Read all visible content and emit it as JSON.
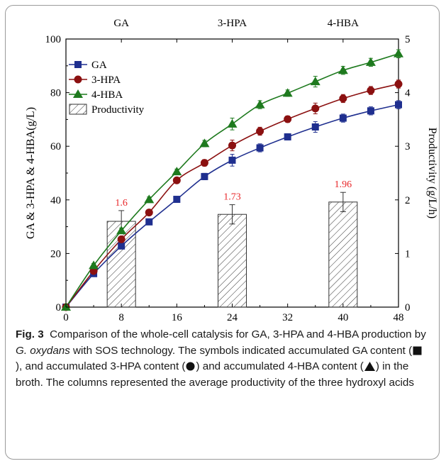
{
  "colors": {
    "GA": "#1f2f8f",
    "3-HPA": "#8b1010",
    "4-HBA": "#1e7a1e",
    "bar_label": "#e8272a",
    "axis": "#000000"
  },
  "chart_data": {
    "type": "line",
    "x": [
      0,
      4,
      8,
      12,
      16,
      20,
      24,
      28,
      32,
      36,
      40,
      44,
      48
    ],
    "xlabel": "Time (h)",
    "ylabel": "GA & 3-HPA & 4-HBA(g/L)",
    "y2label": "Productivity (g/L/h)",
    "xlim": [
      0,
      48
    ],
    "ylim": [
      0,
      100
    ],
    "y2lim": [
      0,
      5
    ],
    "xticks": [
      0,
      8,
      16,
      24,
      32,
      40,
      48
    ],
    "yticks": [
      0,
      20,
      40,
      60,
      80,
      100
    ],
    "y2ticks": [
      0,
      1,
      2,
      3,
      4,
      5
    ],
    "top_labels": [
      "GA",
      "3-HPA",
      "4-HBA"
    ],
    "legend_position": "top-left",
    "grid": false,
    "series": [
      {
        "name": "GA",
        "marker": "square",
        "values": [
          0,
          12.5,
          22.8,
          31.8,
          40.2,
          48.7,
          54.8,
          59.4,
          63.5,
          67.2,
          70.5,
          73.2,
          75.5
        ],
        "errors": [
          0,
          0.8,
          1.0,
          1.0,
          1.0,
          1.2,
          2.2,
          1.5,
          1.2,
          2.0,
          1.5,
          1.5,
          1.5
        ]
      },
      {
        "name": "3-HPA",
        "marker": "circle",
        "values": [
          0,
          13.5,
          25.3,
          35.3,
          47.3,
          53.8,
          60.3,
          65.6,
          70.1,
          74.1,
          77.8,
          80.8,
          83.2
        ],
        "errors": [
          0,
          0.8,
          1.0,
          1.0,
          1.0,
          1.2,
          2.0,
          1.5,
          1.2,
          2.0,
          1.5,
          1.5,
          1.5
        ]
      },
      {
        "name": "4-HBA",
        "marker": "triangle",
        "values": [
          0,
          15.5,
          28.5,
          40.1,
          50.5,
          61.0,
          68.3,
          75.5,
          79.8,
          84.1,
          88.3,
          91.3,
          94.5
        ],
        "errors": [
          0,
          0.8,
          1.0,
          1.0,
          1.0,
          1.2,
          2.2,
          1.5,
          1.2,
          2.0,
          1.5,
          1.5,
          1.5
        ]
      }
    ],
    "bars": {
      "name": "Productivity",
      "axis": "y2",
      "x": [
        8,
        24,
        40
      ],
      "values": [
        1.6,
        1.73,
        1.96
      ],
      "labels": [
        "1.6",
        "1.73",
        "1.96"
      ],
      "errors": [
        0.2,
        0.18,
        0.18
      ]
    }
  },
  "caption": {
    "fig_label": "Fig. 3",
    "text_1": "Comparison of the whole-cell catalysis for GA, 3-HPA and 4-HBA production by ",
    "organism": "G. oxydans",
    "text_2": " with SOS technology. The symbols indicated accumulated GA content (",
    "text_3": "), and accumulated 3-HPA content (",
    "text_4": ") and accumulated 4-HBA content (",
    "text_5": ") in the broth. The columns represented the average productivity of the three hydroxyl acids"
  }
}
